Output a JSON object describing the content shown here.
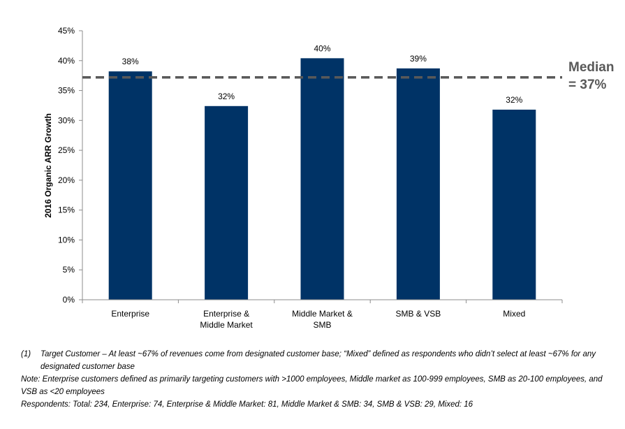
{
  "chart_data": {
    "type": "bar",
    "categories": [
      [
        "Enterprise"
      ],
      [
        "Enterprise &",
        "Middle Market"
      ],
      [
        "Middle Market &",
        "SMB"
      ],
      [
        "SMB & VSB"
      ],
      [
        "Mixed"
      ]
    ],
    "values": [
      38.2,
      32.4,
      40.4,
      38.7,
      31.8
    ],
    "data_labels": [
      "38%",
      "32%",
      "40%",
      "39%",
      "32%"
    ],
    "ylabel": "2016 Organic ARR Growth",
    "ylim": [
      0,
      45
    ],
    "yticks": [
      0,
      5,
      10,
      15,
      20,
      25,
      30,
      35,
      40,
      45
    ],
    "ytick_labels": [
      "0%",
      "5%",
      "10%",
      "15%",
      "20%",
      "25%",
      "30%",
      "35%",
      "40%",
      "45%"
    ],
    "bar_color": "#003366",
    "grid": false,
    "reference_line": {
      "value": 37.2,
      "label_lines": [
        "Median",
        "= 37%"
      ],
      "color": "#595959",
      "style": "dashed"
    }
  },
  "footnotes": {
    "target_marker": "(1)",
    "target_text": "Target Customer – At least ~67% of revenues come from designated customer base; “Mixed” defined as respondents who didn’t select at least ~67% for any designated customer base",
    "note": "Note: Enterprise customers defined as primarily targeting customers with >1000 employees, Middle market as 100-999 employees, SMB as 20-100 employees, and VSB as <20 employees",
    "respondents": "Respondents: Total: 234, Enterprise: 74, Enterprise & Middle Market: 81, Middle Market & SMB: 34, SMB & VSB: 29, Mixed: 16"
  }
}
